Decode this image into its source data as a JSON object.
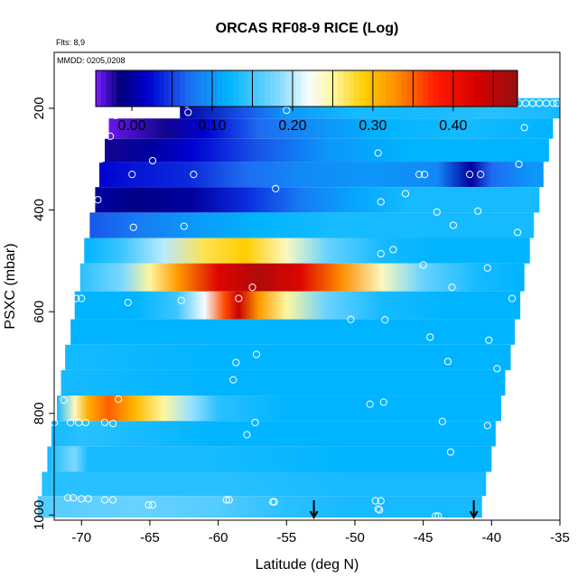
{
  "chart_data": {
    "type": "heatmap",
    "title": "ORCAS RF08-9 RICE (Log)",
    "flights_note": "Flts: 8,9",
    "date_note": "MMDD: 0205,0208",
    "xlabel": "Latitude (deg N)",
    "ylabel": "PSXC (mbar)",
    "xlim": [
      -72,
      -35
    ],
    "ylim": [
      1010,
      90
    ],
    "y_reversed": true,
    "grid": false,
    "x_ticks": [
      -70,
      -65,
      -60,
      -55,
      -50,
      -45,
      -40,
      -35
    ],
    "y_ticks": [
      200,
      400,
      600,
      800,
      1000
    ],
    "colorbar": {
      "range": [
        -0.045,
        0.48
      ],
      "ticks": [
        0.0,
        0.1,
        0.2,
        0.3,
        0.4
      ],
      "tick_labels": [
        "0.00",
        "0.10",
        "0.20",
        "0.30",
        "0.40"
      ],
      "placement": "top-inside",
      "stops": [
        {
          "v": -0.045,
          "c": "#7a1cff"
        },
        {
          "v": -0.015,
          "c": "#00007a"
        },
        {
          "v": 0.02,
          "c": "#0000d0"
        },
        {
          "v": 0.07,
          "c": "#1e6cf0"
        },
        {
          "v": 0.12,
          "c": "#00b4ff"
        },
        {
          "v": 0.18,
          "c": "#7cd8ff"
        },
        {
          "v": 0.22,
          "c": "#f4fcff"
        },
        {
          "v": 0.25,
          "c": "#fff6a0"
        },
        {
          "v": 0.29,
          "c": "#ffcc00"
        },
        {
          "v": 0.33,
          "c": "#ff8c00"
        },
        {
          "v": 0.38,
          "c": "#ff1a00"
        },
        {
          "v": 0.43,
          "c": "#d40000"
        },
        {
          "v": 0.48,
          "c": "#961010"
        }
      ]
    },
    "bands": [
      {
        "p": 200,
        "x0": -62.8,
        "x1": -35,
        "k": [
          [
            -62.8,
            0.0
          ],
          [
            -58,
            0.06
          ],
          [
            -55,
            0.1
          ],
          [
            -50,
            0.13
          ],
          [
            -45,
            0.13
          ],
          [
            -40,
            0.14
          ],
          [
            -35,
            0.13
          ]
        ]
      },
      {
        "p": 240,
        "x0": -68.0,
        "x1": -35.5,
        "k": [
          [
            -68,
            -0.04
          ],
          [
            -64,
            -0.02
          ],
          [
            -61,
            0.02
          ],
          [
            -57,
            0.07
          ],
          [
            -52,
            0.1
          ],
          [
            -48,
            0.12
          ],
          [
            -42,
            0.13
          ],
          [
            -36,
            0.12
          ]
        ]
      },
      {
        "p": 280,
        "x0": -68.3,
        "x1": -35.8,
        "k": [
          [
            -68.3,
            -0.02
          ],
          [
            -65,
            0.0
          ],
          [
            -62,
            0.02
          ],
          [
            -57,
            0.06
          ],
          [
            -52,
            0.1
          ],
          [
            -46,
            0.12
          ],
          [
            -40,
            0.12
          ],
          [
            -36,
            0.12
          ]
        ]
      },
      {
        "p": 330,
        "x0": -68.7,
        "x1": -36.2,
        "k": [
          [
            -68.7,
            0.02
          ],
          [
            -66,
            0.03
          ],
          [
            -62,
            0.04
          ],
          [
            -58,
            0.07
          ],
          [
            -54,
            0.09
          ],
          [
            -49,
            0.1
          ],
          [
            -44,
            0.09
          ],
          [
            -41.5,
            0.0
          ],
          [
            -40,
            0.07
          ],
          [
            -37,
            0.1
          ]
        ]
      },
      {
        "p": 380,
        "x0": -69.0,
        "x1": -36.5,
        "k": [
          [
            -69,
            0.0
          ],
          [
            -66,
            -0.01
          ],
          [
            -62,
            0.0
          ],
          [
            -58,
            0.04
          ],
          [
            -54,
            0.08
          ],
          [
            -50,
            0.11
          ],
          [
            -46,
            0.13
          ],
          [
            -42,
            0.13
          ],
          [
            -38,
            0.13
          ]
        ]
      },
      {
        "p": 430,
        "x0": -69.4,
        "x1": -36.9,
        "k": [
          [
            -69.4,
            0.06
          ],
          [
            -66,
            0.08
          ],
          [
            -62,
            0.1
          ],
          [
            -57,
            0.12
          ],
          [
            -52,
            0.13
          ],
          [
            -47,
            0.13
          ],
          [
            -42,
            0.13
          ],
          [
            -38,
            0.13
          ]
        ]
      },
      {
        "p": 480,
        "x0": -69.8,
        "x1": -37.2,
        "k": [
          [
            -69.8,
            0.12
          ],
          [
            -67,
            0.15
          ],
          [
            -64,
            0.2
          ],
          [
            -61,
            0.27
          ],
          [
            -58,
            0.29
          ],
          [
            -55,
            0.24
          ],
          [
            -52,
            0.17
          ],
          [
            -48,
            0.13
          ],
          [
            -44,
            0.12
          ],
          [
            -40,
            0.12
          ]
        ]
      },
      {
        "p": 530,
        "x0": -70.1,
        "x1": -37.6,
        "k": [
          [
            -70.1,
            0.14
          ],
          [
            -67,
            0.18
          ],
          [
            -65,
            0.25
          ],
          [
            -63,
            0.32
          ],
          [
            -60,
            0.42
          ],
          [
            -57,
            0.46
          ],
          [
            -54,
            0.42
          ],
          [
            -51,
            0.33
          ],
          [
            -48,
            0.24
          ],
          [
            -45,
            0.17
          ],
          [
            -41,
            0.13
          ],
          [
            -38,
            0.12
          ]
        ]
      },
      {
        "p": 590,
        "x0": -70.5,
        "x1": -37.9,
        "k": [
          [
            -70.5,
            0.12
          ],
          [
            -66,
            0.12
          ],
          [
            -63,
            0.15
          ],
          [
            -61,
            0.22
          ],
          [
            -59.5,
            0.36
          ],
          [
            -58.5,
            0.44
          ],
          [
            -57,
            0.32
          ],
          [
            -55,
            0.25
          ],
          [
            -52,
            0.17
          ],
          [
            -48,
            0.13
          ],
          [
            -43,
            0.12
          ],
          [
            -39,
            0.12
          ]
        ]
      },
      {
        "p": 640,
        "x0": -70.8,
        "x1": -38.3,
        "k": [
          [
            -70.8,
            0.12
          ],
          [
            -60,
            0.12
          ],
          [
            -50,
            0.12
          ],
          [
            -45,
            0.12
          ],
          [
            -40,
            0.12
          ]
        ]
      },
      {
        "p": 690,
        "x0": -71.2,
        "x1": -38.6,
        "k": [
          [
            -71.2,
            0.13
          ],
          [
            -60,
            0.12
          ],
          [
            -50,
            0.12
          ],
          [
            -40,
            0.12
          ]
        ]
      },
      {
        "p": 740,
        "x0": -71.5,
        "x1": -39.0,
        "k": [
          [
            -71.5,
            0.13
          ],
          [
            -60,
            0.12
          ],
          [
            -50,
            0.12
          ],
          [
            -40,
            0.12
          ]
        ]
      },
      {
        "p": 790,
        "x0": -71.8,
        "x1": -39.3,
        "k": [
          [
            -71.8,
            0.13
          ],
          [
            -70.5,
            0.24
          ],
          [
            -69.5,
            0.31
          ],
          [
            -68,
            0.35
          ],
          [
            -66,
            0.3
          ],
          [
            -64,
            0.25
          ],
          [
            -62,
            0.19
          ],
          [
            -60,
            0.14
          ],
          [
            -55,
            0.12
          ],
          [
            -45,
            0.12
          ],
          [
            -40,
            0.12
          ]
        ]
      },
      {
        "p": 840,
        "x0": -72.2,
        "x1": -39.7,
        "k": [
          [
            -72.2,
            0.13
          ],
          [
            -70,
            0.14
          ],
          [
            -60,
            0.12
          ],
          [
            -50,
            0.12
          ],
          [
            -40,
            0.12
          ]
        ]
      },
      {
        "p": 890,
        "x0": -72.5,
        "x1": -40.0,
        "k": [
          [
            -72.5,
            0.13
          ],
          [
            -70.5,
            0.18
          ],
          [
            -69.5,
            0.13
          ],
          [
            -60,
            0.13
          ],
          [
            -50,
            0.12
          ],
          [
            -41,
            0.12
          ]
        ]
      },
      {
        "p": 940,
        "x0": -72.9,
        "x1": -40.4,
        "k": [
          [
            -72.9,
            0.14
          ],
          [
            -60,
            0.14
          ],
          [
            -50,
            0.13
          ],
          [
            -41,
            0.13
          ]
        ]
      },
      {
        "p": 985,
        "x0": -73.2,
        "x1": -40.7,
        "k": [
          [
            -73.2,
            0.16
          ],
          [
            -66,
            0.17
          ],
          [
            -60,
            0.16
          ],
          [
            -55,
            0.14
          ],
          [
            -50,
            0.13
          ],
          [
            -45,
            0.13
          ],
          [
            -41,
            0.13
          ]
        ]
      }
    ],
    "points": [
      [
        -62.3,
        192
      ],
      [
        -62.2,
        208
      ],
      [
        -59.3,
        186
      ],
      [
        -55.0,
        204
      ],
      [
        -49.1,
        188
      ],
      [
        -67.5,
        214
      ],
      [
        -38.0,
        190
      ],
      [
        -37.5,
        190
      ],
      [
        -37.0,
        190
      ],
      [
        -36.5,
        190
      ],
      [
        -36.0,
        190
      ],
      [
        -35.5,
        190
      ],
      [
        -35.2,
        190
      ],
      [
        -34.8,
        190
      ],
      [
        -37.6,
        238
      ],
      [
        -67.9,
        255
      ],
      [
        -48.3,
        288
      ],
      [
        -64.8,
        303
      ],
      [
        -68.6,
        300
      ],
      [
        -38.0,
        310
      ],
      [
        -66.3,
        330
      ],
      [
        -61.8,
        330
      ],
      [
        -45.3,
        330
      ],
      [
        -44.9,
        330
      ],
      [
        -41.6,
        330
      ],
      [
        -40.8,
        330
      ],
      [
        -55.8,
        358
      ],
      [
        -46.3,
        368
      ],
      [
        -48.1,
        384
      ],
      [
        -68.8,
        380
      ],
      [
        -44.0,
        404
      ],
      [
        -41.0,
        402
      ],
      [
        -66.2,
        434
      ],
      [
        -62.5,
        432
      ],
      [
        -42.8,
        430
      ],
      [
        -38.1,
        444
      ],
      [
        -47.2,
        478
      ],
      [
        -48.1,
        486
      ],
      [
        -45.0,
        508
      ],
      [
        -40.3,
        514
      ],
      [
        -57.5,
        552
      ],
      [
        -42.9,
        552
      ],
      [
        -70.4,
        574
      ],
      [
        -70.0,
        574
      ],
      [
        -66.6,
        582
      ],
      [
        -62.7,
        578
      ],
      [
        -58.5,
        574
      ],
      [
        -38.5,
        574
      ],
      [
        -50.3,
        615
      ],
      [
        -47.8,
        616
      ],
      [
        -44.5,
        650
      ],
      [
        -40.2,
        656
      ],
      [
        -57.2,
        684
      ],
      [
        -58.7,
        700
      ],
      [
        -43.2,
        698
      ],
      [
        -39.6,
        712
      ],
      [
        -58.9,
        734
      ],
      [
        -71.3,
        774
      ],
      [
        -67.3,
        772
      ],
      [
        -48.9,
        782
      ],
      [
        -47.9,
        778
      ],
      [
        -72.0,
        818
      ],
      [
        -70.8,
        818
      ],
      [
        -70.2,
        818
      ],
      [
        -69.7,
        818
      ],
      [
        -68.3,
        818
      ],
      [
        -67.7,
        820
      ],
      [
        -57.3,
        818
      ],
      [
        -43.6,
        816
      ],
      [
        -40.3,
        824
      ],
      [
        -57.9,
        842
      ],
      [
        -43.0,
        876
      ],
      [
        -71.0,
        966
      ],
      [
        -70.6,
        966
      ],
      [
        -70.0,
        968
      ],
      [
        -69.5,
        968
      ],
      [
        -68.3,
        970
      ],
      [
        -67.7,
        970
      ],
      [
        -65.1,
        980
      ],
      [
        -64.8,
        980
      ],
      [
        -59.4,
        970
      ],
      [
        -59.2,
        970
      ],
      [
        -56.0,
        974
      ],
      [
        -55.9,
        974
      ],
      [
        -48.5,
        972
      ],
      [
        -48.1,
        972
      ],
      [
        -48.3,
        988
      ],
      [
        -48.2,
        990
      ],
      [
        -44.1,
        1002
      ],
      [
        -43.9,
        1002
      ],
      [
        -40.1,
        1004
      ]
    ],
    "arrows": [
      -53.0,
      -41.3
    ]
  }
}
